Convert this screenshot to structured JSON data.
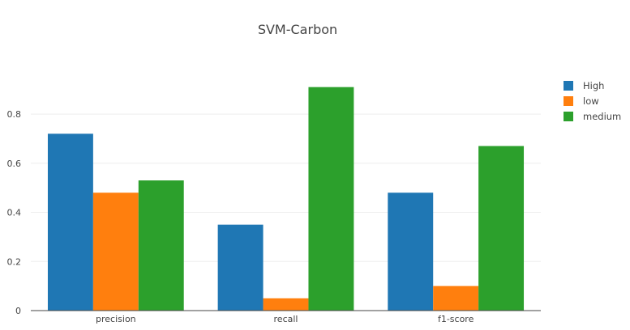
{
  "chart_data": {
    "type": "bar",
    "title": "SVM-Carbon",
    "xlabel": "",
    "ylabel": "",
    "categories": [
      "precision",
      "recall",
      "f1-score"
    ],
    "series": [
      {
        "name": "High",
        "color": "#1f77b4",
        "values": [
          0.72,
          0.35,
          0.48
        ]
      },
      {
        "name": "low",
        "color": "#ff7f0e",
        "values": [
          0.48,
          0.05,
          0.1
        ]
      },
      {
        "name": "medium",
        "color": "#2ca02c",
        "values": [
          0.53,
          0.91,
          0.67
        ]
      }
    ],
    "ylim": [
      0,
      0.955
    ],
    "yticks": [
      "0",
      "0.2",
      "0.4",
      "0.6",
      "0.8"
    ],
    "grid": true,
    "legend_position": "top-right"
  }
}
